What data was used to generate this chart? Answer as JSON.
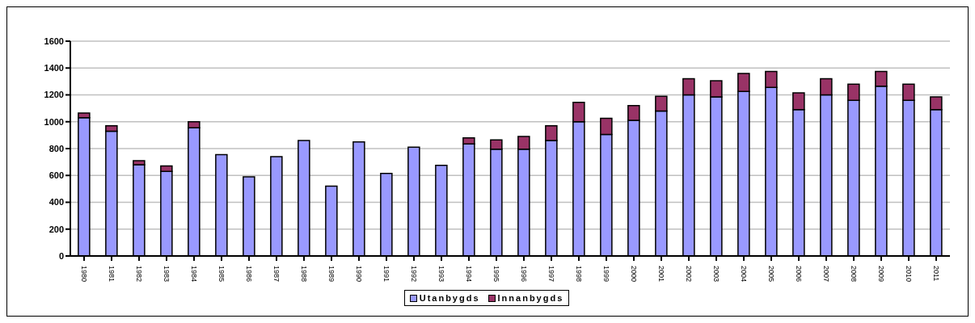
{
  "chart_data": {
    "type": "bar",
    "stacked": true,
    "categories": [
      "1980",
      "1981",
      "1982",
      "1983",
      "1984",
      "1985",
      "1986",
      "1987",
      "1988",
      "1989",
      "1990",
      "1991",
      "1992",
      "1993",
      "1994",
      "1995",
      "1996",
      "1997",
      "1998",
      "1999",
      "2000",
      "2001",
      "2002",
      "2003",
      "2004",
      "2005",
      "2006",
      "2007",
      "2008",
      "2009",
      "2010",
      "2011"
    ],
    "series": [
      {
        "name": "Utanbygds",
        "color": "#9999ff",
        "values": [
          1030,
          930,
          680,
          630,
          955,
          755,
          590,
          740,
          860,
          520,
          850,
          615,
          810,
          675,
          835,
          795,
          795,
          860,
          1000,
          905,
          1010,
          1080,
          1200,
          1185,
          1225,
          1255,
          1090,
          1200,
          1160,
          1265,
          1160,
          1090
        ]
      },
      {
        "name": "Innanbygds",
        "color": "#993366",
        "values": [
          35,
          40,
          30,
          40,
          45,
          0,
          0,
          0,
          0,
          0,
          0,
          0,
          0,
          0,
          45,
          70,
          95,
          110,
          145,
          120,
          110,
          110,
          120,
          120,
          135,
          120,
          125,
          120,
          120,
          110,
          120,
          95
        ]
      }
    ],
    "ylim": [
      0,
      1600
    ],
    "yticks": [
      0,
      200,
      400,
      600,
      800,
      1000,
      1200,
      1400,
      1600
    ],
    "grid": "y",
    "legend": "bottom"
  }
}
